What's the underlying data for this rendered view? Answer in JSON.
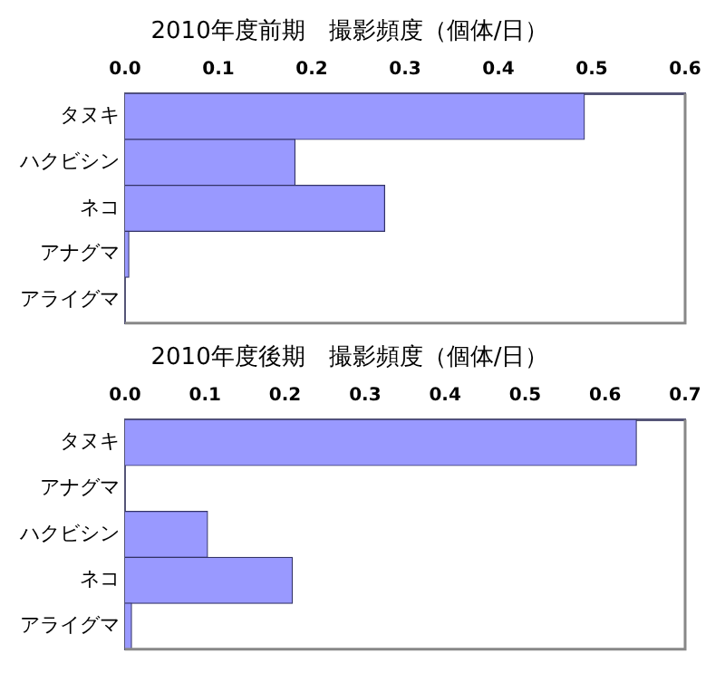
{
  "chart_data": [
    {
      "type": "bar",
      "orientation": "horizontal",
      "title": "2010年度前期　撮影頻度（個体/日）",
      "categories": [
        "タヌキ",
        "ハクビシン",
        "ネコ",
        "アナグマ",
        "アライグマ"
      ],
      "values": [
        0.492,
        0.182,
        0.278,
        0.004,
        0
      ],
      "color": "#9999ff",
      "xlim": [
        0,
        0.6
      ],
      "xticks": [
        {
          "value": 0,
          "label": "0.0"
        },
        0.1,
        0.2,
        0.3,
        0.4,
        0.5,
        0.6
      ]
    },
    {
      "type": "bar",
      "orientation": "horizontal",
      "title": "2010年度後期　撮影頻度（個体/日）",
      "categories": [
        "タヌキ",
        "アナグマ",
        "ハクビシン",
        "ネコ",
        "アライグマ"
      ],
      "values": [
        0.639,
        0,
        0.103,
        0.209,
        0.008
      ],
      "color": "#9999ff",
      "xlim": [
        0,
        0.7
      ],
      "xticks": [
        {
          "value": 0,
          "label": "0.0"
        },
        0.1,
        0.2,
        0.3,
        0.4,
        0.5,
        0.6,
        0.7
      ]
    }
  ]
}
